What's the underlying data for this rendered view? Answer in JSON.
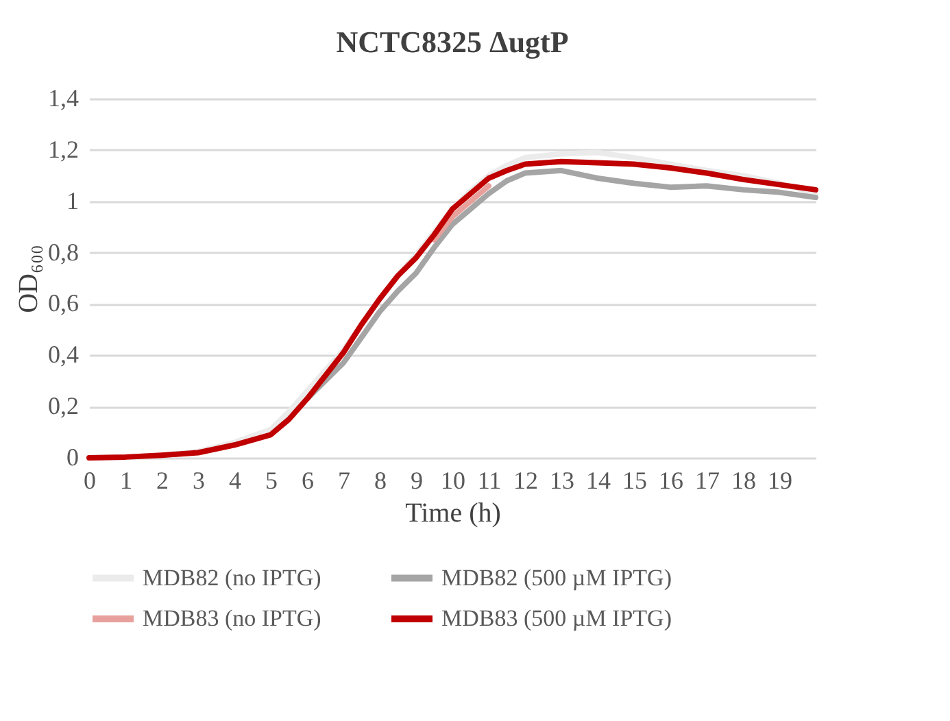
{
  "chart_data": {
    "type": "line",
    "title": "NCTC8325 ΔugtP",
    "xlabel": "Time (h)",
    "ylabel": "OD₆₀₀",
    "x": [
      0,
      1,
      2,
      3,
      4,
      5,
      5.5,
      6,
      6.5,
      7,
      7.5,
      8,
      8.5,
      9,
      9.5,
      10,
      10.5,
      11,
      11.5,
      12,
      13,
      14,
      15,
      16,
      17,
      18,
      19,
      20
    ],
    "series": [
      {
        "name": "MDB82 (no IPTG)",
        "color": "#ebebeb",
        "values": [
          0,
          0.003,
          0.01,
          0.025,
          0.06,
          0.11,
          0.18,
          0.26,
          0.34,
          0.42,
          0.52,
          0.62,
          0.71,
          0.79,
          0.88,
          0.97,
          1.04,
          1.1,
          1.14,
          1.17,
          1.185,
          1.19,
          1.17,
          1.145,
          1.12,
          1.1,
          1.07,
          1.03
        ]
      },
      {
        "name": "MDB82 (500 µM IPTG)",
        "color": "#a5a5a5",
        "values": [
          null,
          null,
          null,
          null,
          null,
          null,
          null,
          0.23,
          0.3,
          0.37,
          0.47,
          0.57,
          0.65,
          0.72,
          0.82,
          0.91,
          0.97,
          1.03,
          1.08,
          1.11,
          1.12,
          1.09,
          1.07,
          1.055,
          1.06,
          1.045,
          1.035,
          1.015
        ]
      },
      {
        "name": "MDB83 (no IPTG)",
        "color": "#e8a09c",
        "values": [
          null,
          null,
          null,
          null,
          null,
          null,
          null,
          null,
          null,
          null,
          null,
          null,
          null,
          null,
          0.85,
          0.94,
          1.0,
          1.06,
          null,
          null,
          null,
          null,
          null,
          null,
          null,
          null,
          null,
          null
        ]
      },
      {
        "name": "MDB83 (500 µM IPTG)",
        "color": "#c00000",
        "values": [
          0,
          0.003,
          0.01,
          0.02,
          0.05,
          0.09,
          0.15,
          0.23,
          0.32,
          0.41,
          0.52,
          0.62,
          0.71,
          0.78,
          0.87,
          0.97,
          1.03,
          1.09,
          1.12,
          1.145,
          1.155,
          1.15,
          1.145,
          1.13,
          1.11,
          1.085,
          1.065,
          1.045
        ]
      }
    ],
    "xlim": [
      0,
      20
    ],
    "xticks": [
      0,
      1,
      2,
      3,
      4,
      5,
      6,
      7,
      8,
      9,
      10,
      11,
      12,
      13,
      14,
      15,
      16,
      17,
      18,
      19
    ],
    "ylim": [
      0,
      1.4
    ],
    "yticks": [
      {
        "value": 0,
        "label": "0"
      },
      {
        "value": 0.2,
        "label": "0,2"
      },
      {
        "value": 0.4,
        "label": "0,4"
      },
      {
        "value": 0.6,
        "label": "0,6"
      },
      {
        "value": 0.8,
        "label": "0,8"
      },
      {
        "value": 1,
        "label": "1"
      },
      {
        "value": 1.2,
        "label": "1,2"
      },
      {
        "value": 1.4,
        "label": "1,4"
      }
    ],
    "grid": "y",
    "legend": "bottom",
    "marker": "none",
    "line_style": "solid"
  }
}
